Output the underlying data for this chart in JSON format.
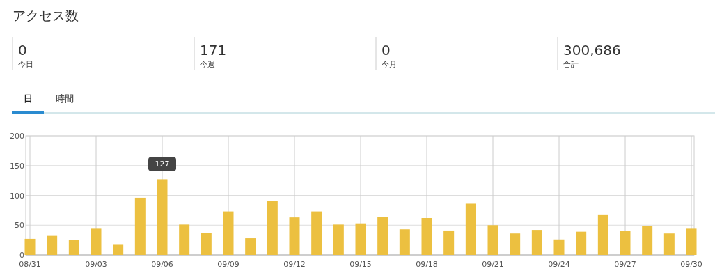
{
  "chart_data": [
    {
      "type": "other",
      "title": "アクセス数",
      "annotations": [
        "0",
        "今日",
        "171",
        "今週",
        "0",
        "今月",
        "300,686",
        "合計",
        "日",
        "時間"
      ]
    },
    {
      "type": "bar",
      "categories": [
        "08/31",
        null,
        null,
        "09/03",
        null,
        null,
        "09/06",
        null,
        null,
        "09/09",
        null,
        null,
        "09/12",
        null,
        null,
        "09/15",
        null,
        null,
        "09/18",
        null,
        null,
        "09/21",
        null,
        null,
        "09/24",
        null,
        null,
        "09/27",
        null,
        null,
        "09/30"
      ],
      "values": [
        27,
        32,
        25,
        44,
        17,
        96,
        127,
        51,
        37,
        73,
        28,
        91,
        63,
        73,
        51,
        53,
        64,
        43,
        62,
        41,
        86,
        50,
        36,
        42,
        26,
        39,
        68,
        40,
        48,
        36,
        44
      ],
      "color": "#ecc040",
      "ylim": [
        0,
        200
      ],
      "yticks": [
        0,
        50,
        100,
        150,
        200
      ],
      "grid": true,
      "annotations": [
        {
          "text": "127",
          "x": "09/06",
          "y": 127
        }
      ]
    }
  ]
}
